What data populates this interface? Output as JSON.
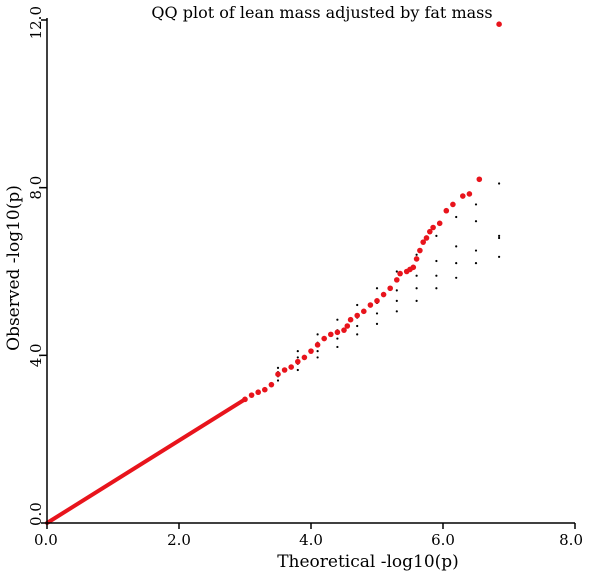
{
  "chart_data": {
    "type": "scatter",
    "title": "QQ plot of lean mass adjusted by fat mass",
    "xlabel": "Theoretical -log10(p)",
    "ylabel": "Observed -log10(p)",
    "xlim": [
      0,
      8
    ],
    "ylim": [
      0,
      12
    ],
    "x_ticks": [
      "0.0",
      "2.0",
      "4.0",
      "6.0",
      "8.0"
    ],
    "x_tick_values": [
      0,
      2,
      4,
      6,
      8
    ],
    "y_ticks": [
      "0.0",
      "4.0",
      "8.0",
      "12.0"
    ],
    "y_tick_values": [
      0,
      4,
      8,
      12
    ],
    "grid": false,
    "colors": {
      "observed": "#e8141c",
      "expected": "#000000"
    },
    "series": [
      {
        "role": "expected-bands",
        "points": [
          [
            3.5,
            3.7
          ],
          [
            3.8,
            4.1
          ],
          [
            4.1,
            4.5
          ],
          [
            4.4,
            4.85
          ],
          [
            4.7,
            5.2
          ],
          [
            5.0,
            5.6
          ],
          [
            5.3,
            6.0
          ],
          [
            5.6,
            6.4
          ],
          [
            5.9,
            6.85
          ],
          [
            6.2,
            7.3
          ],
          [
            6.5,
            7.6
          ],
          [
            6.85,
            8.1
          ],
          [
            3.5,
            3.6
          ],
          [
            3.8,
            3.95
          ],
          [
            4.1,
            4.3
          ],
          [
            4.4,
            4.6
          ],
          [
            4.7,
            4.9
          ],
          [
            5.0,
            5.25
          ],
          [
            5.3,
            5.55
          ],
          [
            5.6,
            5.9
          ],
          [
            5.9,
            6.25
          ],
          [
            6.2,
            6.6
          ],
          [
            6.5,
            7.2
          ],
          [
            6.85,
            6.8
          ],
          [
            3.5,
            3.5
          ],
          [
            3.8,
            3.8
          ],
          [
            4.1,
            4.1
          ],
          [
            4.4,
            4.4
          ],
          [
            4.7,
            4.7
          ],
          [
            5.0,
            5.0
          ],
          [
            5.3,
            5.3
          ],
          [
            5.6,
            5.6
          ],
          [
            5.9,
            5.9
          ],
          [
            6.2,
            6.2
          ],
          [
            6.5,
            6.5
          ],
          [
            6.85,
            6.85
          ],
          [
            3.5,
            3.4
          ],
          [
            3.8,
            3.65
          ],
          [
            4.1,
            3.95
          ],
          [
            4.4,
            4.2
          ],
          [
            4.7,
            4.5
          ],
          [
            5.0,
            4.75
          ],
          [
            5.3,
            5.05
          ],
          [
            5.6,
            5.3
          ],
          [
            5.9,
            5.6
          ],
          [
            6.2,
            5.85
          ],
          [
            6.5,
            6.2
          ],
          [
            6.85,
            6.35
          ]
        ]
      },
      {
        "role": "observed-tail",
        "points": [
          [
            3.0,
            2.95
          ],
          [
            3.1,
            3.05
          ],
          [
            3.2,
            3.12
          ],
          [
            3.3,
            3.18
          ],
          [
            3.4,
            3.3
          ],
          [
            3.5,
            3.55
          ],
          [
            3.6,
            3.65
          ],
          [
            3.7,
            3.72
          ],
          [
            3.8,
            3.85
          ],
          [
            3.9,
            3.95
          ],
          [
            4.0,
            4.1
          ],
          [
            4.1,
            4.25
          ],
          [
            4.2,
            4.4
          ],
          [
            4.3,
            4.5
          ],
          [
            4.4,
            4.55
          ],
          [
            4.5,
            4.6
          ],
          [
            4.55,
            4.7
          ],
          [
            4.6,
            4.85
          ],
          [
            4.7,
            4.95
          ],
          [
            4.8,
            5.05
          ],
          [
            4.9,
            5.2
          ],
          [
            5.0,
            5.3
          ],
          [
            5.1,
            5.45
          ],
          [
            5.2,
            5.6
          ],
          [
            5.3,
            5.8
          ],
          [
            5.35,
            5.95
          ],
          [
            5.45,
            6.0
          ],
          [
            5.5,
            6.05
          ],
          [
            5.55,
            6.1
          ],
          [
            5.6,
            6.3
          ],
          [
            5.65,
            6.5
          ],
          [
            5.7,
            6.7
          ],
          [
            5.75,
            6.8
          ],
          [
            5.8,
            6.95
          ],
          [
            5.85,
            7.05
          ],
          [
            5.95,
            7.15
          ],
          [
            6.05,
            7.45
          ],
          [
            6.15,
            7.6
          ],
          [
            6.3,
            7.8
          ],
          [
            6.4,
            7.85
          ],
          [
            6.55,
            8.2
          ],
          [
            6.85,
            11.9
          ]
        ]
      }
    ]
  }
}
